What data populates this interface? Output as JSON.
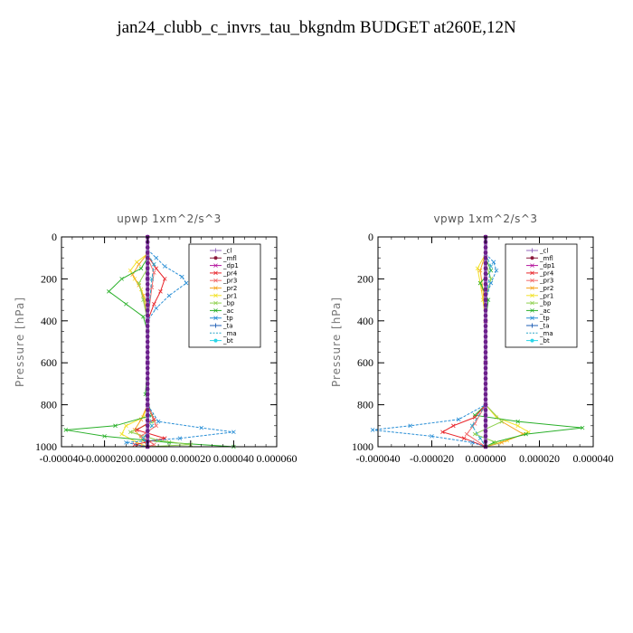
{
  "figure": {
    "title": "jan24_clubb_c_invrs_tau_bkgndm  BUDGET at260E,12N"
  },
  "legend": {
    "entries": [
      {
        "name": "_cl",
        "color": "#9467bd",
        "marker": "plus"
      },
      {
        "name": "_mfl",
        "color": "#8b1a3c",
        "marker": "dot"
      },
      {
        "name": "_dp1",
        "color": "#b5179e",
        "marker": "x"
      },
      {
        "name": "_pr4",
        "color": "#e8242a",
        "marker": "x"
      },
      {
        "name": "_pr3",
        "color": "#f26b6b",
        "marker": "x"
      },
      {
        "name": "_pr2",
        "color": "#f5a623",
        "marker": "x"
      },
      {
        "name": "_pr1",
        "color": "#f2e22a",
        "marker": "x"
      },
      {
        "name": "_bp",
        "color": "#8fd14f",
        "marker": "x"
      },
      {
        "name": "_ac",
        "color": "#2ab02a",
        "marker": "x"
      },
      {
        "name": "_tp",
        "color": "#2a8fd6",
        "marker": "x"
      },
      {
        "name": "_ta",
        "color": "#1f5fb5",
        "marker": "plus"
      },
      {
        "name": "_ma",
        "color": "#2aa6c8",
        "marker": "none"
      },
      {
        "name": "_bt",
        "color": "#2ad6e8",
        "marker": "dot"
      }
    ]
  },
  "chart_data": [
    {
      "type": "line",
      "title": "upwp   1xm^2/s^3",
      "ylabel": "Pressure [hPa]",
      "xlim": [
        -4e-05,
        6e-05
      ],
      "ylim": [
        1000,
        0
      ],
      "xticks": [
        "-0.000040",
        "-0.000020",
        "0.000000",
        "0.000020",
        "0.000040",
        "0.000060"
      ],
      "xtick_values": [
        -4e-05,
        -2e-05,
        0,
        2e-05,
        4e-05,
        6e-05
      ],
      "yticks": [
        0,
        200,
        400,
        600,
        800,
        1000
      ],
      "legend_position": "top-right",
      "series": [
        {
          "name": "_pr1",
          "points": [
            [
              0,
              80
            ],
            [
              -5e-06,
              120
            ],
            [
              -8e-06,
              160
            ],
            [
              -6e-06,
              200
            ],
            [
              -3e-06,
              250
            ],
            [
              -1e-06,
              300
            ],
            [
              0,
              400
            ],
            [
              0,
              600
            ],
            [
              0,
              800
            ],
            [
              -2e-06,
              860
            ],
            [
              -1e-05,
              900
            ],
            [
              -1.2e-05,
              940
            ],
            [
              -5e-06,
              980
            ],
            [
              0,
              1000
            ]
          ]
        },
        {
          "name": "_pr2",
          "points": [
            [
              0,
              80
            ],
            [
              -4e-06,
              130
            ],
            [
              -7e-06,
              180
            ],
            [
              -4e-06,
              230
            ],
            [
              -2e-06,
              280
            ],
            [
              0,
              400
            ],
            [
              0,
              600
            ],
            [
              0,
              800
            ],
            [
              -3e-06,
              870
            ],
            [
              -6e-06,
              920
            ],
            [
              -2e-06,
              970
            ],
            [
              0,
              1000
            ]
          ]
        },
        {
          "name": "_ac",
          "points": [
            [
              0,
              100
            ],
            [
              -3e-06,
              150
            ],
            [
              -1.2e-05,
              200
            ],
            [
              -1.8e-05,
              260
            ],
            [
              -1e-05,
              320
            ],
            [
              -2e-06,
              380
            ],
            [
              0,
              450
            ],
            [
              0,
              600
            ],
            [
              -1e-06,
              750
            ],
            [
              2e-06,
              850
            ],
            [
              -1.5e-05,
              900
            ],
            [
              -3.8e-05,
              920
            ],
            [
              -2e-05,
              950
            ],
            [
              1e-05,
              980
            ],
            [
              4e-05,
              1000
            ]
          ]
        },
        {
          "name": "_bp",
          "points": [
            [
              0,
              150
            ],
            [
              -4e-06,
              220
            ],
            [
              -2e-06,
              300
            ],
            [
              0,
              400
            ],
            [
              0,
              600
            ],
            [
              0,
              800
            ],
            [
              3e-06,
              880
            ],
            [
              -8e-06,
              930
            ],
            [
              5e-06,
              970
            ],
            [
              2e-05,
              990
            ],
            [
              0,
              1000
            ]
          ]
        },
        {
          "name": "_pr4",
          "points": [
            [
              0,
              90
            ],
            [
              4e-06,
              150
            ],
            [
              8e-06,
              200
            ],
            [
              6e-06,
              260
            ],
            [
              3e-06,
              320
            ],
            [
              0,
              400
            ],
            [
              0,
              600
            ],
            [
              0,
              800
            ],
            [
              3e-06,
              870
            ],
            [
              -5e-06,
              920
            ],
            [
              8e-06,
              960
            ],
            [
              -6e-06,
              990
            ],
            [
              0,
              1000
            ]
          ]
        },
        {
          "name": "_pr3",
          "points": [
            [
              0,
              100
            ],
            [
              3e-06,
              170
            ],
            [
              2e-06,
              240
            ],
            [
              0,
              400
            ],
            [
              0,
              600
            ],
            [
              0,
              800
            ],
            [
              4e-06,
              900
            ],
            [
              -3e-06,
              950
            ],
            [
              3e-06,
              990
            ],
            [
              0,
              1000
            ]
          ]
        },
        {
          "name": "_tp",
          "points": [
            [
              0,
              60
            ],
            [
              4e-06,
              100
            ],
            [
              8e-06,
              140
            ],
            [
              1.6e-05,
              190
            ],
            [
              1.8e-05,
              220
            ],
            [
              1e-05,
              280
            ],
            [
              4e-06,
              340
            ],
            [
              0,
              400
            ],
            [
              0,
              600
            ],
            [
              0,
              800
            ],
            [
              5e-06,
              880
            ],
            [
              2.5e-05,
              910
            ],
            [
              4e-05,
              930
            ],
            [
              1.5e-05,
              960
            ],
            [
              -1e-05,
              980
            ],
            [
              0,
              1000
            ]
          ]
        },
        {
          "name": "_ma",
          "points": [
            [
              0,
              80
            ],
            [
              3e-06,
              130
            ],
            [
              2e-06,
              200
            ],
            [
              0,
              400
            ],
            [
              0,
              600
            ],
            [
              0,
              800
            ],
            [
              2e-06,
              900
            ],
            [
              -2e-06,
              960
            ],
            [
              0,
              1000
            ]
          ]
        },
        {
          "name": "_dp1",
          "points": [
            [
              0,
              0
            ],
            [
              0,
              200
            ],
            [
              0,
              400
            ],
            [
              0,
              600
            ],
            [
              0,
              800
            ],
            [
              0,
              1000
            ]
          ]
        },
        {
          "name": "_mfl",
          "points": [
            [
              0,
              0
            ],
            [
              0,
              200
            ],
            [
              0,
              400
            ],
            [
              0,
              600
            ],
            [
              0,
              800
            ],
            [
              0,
              1000
            ]
          ]
        },
        {
          "name": "_cl",
          "points": [
            [
              0,
              0
            ],
            [
              0,
              200
            ],
            [
              0,
              400
            ],
            [
              0,
              600
            ],
            [
              0,
              800
            ],
            [
              0,
              1000
            ]
          ]
        }
      ]
    },
    {
      "type": "line",
      "title": "vpwp   1xm^2/s^3",
      "ylabel": "Pressure [hPa]",
      "xlim": [
        -4e-05,
        4e-05
      ],
      "ylim": [
        1000,
        0
      ],
      "xticks": [
        "-0.000040",
        "-0.000020",
        "0.000000",
        "0.000020",
        "0.000040"
      ],
      "xtick_values": [
        -4e-05,
        -2e-05,
        0,
        2e-05,
        4e-05
      ],
      "yticks": [
        0,
        200,
        400,
        600,
        800,
        1000
      ],
      "legend_position": "top-right",
      "series": [
        {
          "name": "_pr1",
          "points": [
            [
              0,
              80
            ],
            [
              -3e-06,
              150
            ],
            [
              -2e-06,
              220
            ],
            [
              -1e-06,
              300
            ],
            [
              0,
              400
            ],
            [
              0,
              600
            ],
            [
              0,
              800
            ],
            [
              4e-06,
              860
            ],
            [
              1.2e-05,
              900
            ],
            [
              1.6e-05,
              930
            ],
            [
              8e-06,
              970
            ],
            [
              0,
              1000
            ]
          ]
        },
        {
          "name": "_pr2",
          "points": [
            [
              0,
              80
            ],
            [
              -2e-06,
              160
            ],
            [
              -1e-06,
              250
            ],
            [
              0,
              400
            ],
            [
              0,
              600
            ],
            [
              0,
              800
            ],
            [
              6e-06,
              880
            ],
            [
              1.4e-05,
              940
            ],
            [
              6e-06,
              980
            ],
            [
              0,
              1000
            ]
          ]
        },
        {
          "name": "_ac",
          "points": [
            [
              0,
              100
            ],
            [
              2e-06,
              160
            ],
            [
              -2e-06,
              220
            ],
            [
              1e-06,
              300
            ],
            [
              0,
              400
            ],
            [
              0,
              600
            ],
            [
              0,
              800
            ],
            [
              -4e-06,
              850
            ],
            [
              1.2e-05,
              880
            ],
            [
              3.6e-05,
              910
            ],
            [
              1.5e-05,
              940
            ],
            [
              3e-06,
              980
            ],
            [
              0,
              1000
            ]
          ]
        },
        {
          "name": "_bp",
          "points": [
            [
              0,
              120
            ],
            [
              2e-06,
              200
            ],
            [
              0,
              300
            ],
            [
              0,
              600
            ],
            [
              0,
              800
            ],
            [
              6e-06,
              880
            ],
            [
              -4e-06,
              940
            ],
            [
              4e-06,
              980
            ],
            [
              0,
              1000
            ]
          ]
        },
        {
          "name": "_pr4",
          "points": [
            [
              0,
              100
            ],
            [
              0,
              200
            ],
            [
              0,
              400
            ],
            [
              0,
              600
            ],
            [
              0,
              800
            ],
            [
              -4e-06,
              860
            ],
            [
              -1.2e-05,
              900
            ],
            [
              -1.6e-05,
              930
            ],
            [
              -8e-06,
              960
            ],
            [
              0,
              1000
            ]
          ]
        },
        {
          "name": "_pr3",
          "points": [
            [
              0,
              100
            ],
            [
              0,
              400
            ],
            [
              0,
              800
            ],
            [
              -4e-06,
              890
            ],
            [
              -7e-06,
              940
            ],
            [
              0,
              1000
            ]
          ]
        },
        {
          "name": "_tp",
          "points": [
            [
              0,
              80
            ],
            [
              3e-06,
              120
            ],
            [
              4e-06,
              160
            ],
            [
              2e-06,
              220
            ],
            [
              0,
              300
            ],
            [
              0,
              600
            ],
            [
              0,
              800
            ],
            [
              -1e-05,
              870
            ],
            [
              -2.8e-05,
              900
            ],
            [
              -4.2e-05,
              920
            ],
            [
              -2e-05,
              950
            ],
            [
              -5e-06,
              980
            ],
            [
              0,
              1000
            ]
          ]
        },
        {
          "name": "_ma",
          "points": [
            [
              0,
              80
            ],
            [
              2e-06,
              140
            ],
            [
              0,
              300
            ],
            [
              0,
              800
            ],
            [
              -5e-06,
              900
            ],
            [
              -2e-06,
              960
            ],
            [
              0,
              1000
            ]
          ]
        },
        {
          "name": "_dp1",
          "points": [
            [
              0,
              0
            ],
            [
              0,
              200
            ],
            [
              0,
              400
            ],
            [
              0,
              600
            ],
            [
              0,
              800
            ],
            [
              0,
              1000
            ]
          ]
        },
        {
          "name": "_mfl",
          "points": [
            [
              0,
              0
            ],
            [
              0,
              200
            ],
            [
              0,
              400
            ],
            [
              0,
              600
            ],
            [
              0,
              800
            ],
            [
              0,
              1000
            ]
          ]
        },
        {
          "name": "_cl",
          "points": [
            [
              0,
              0
            ],
            [
              0,
              200
            ],
            [
              0,
              400
            ],
            [
              0,
              600
            ],
            [
              0,
              800
            ],
            [
              0,
              1000
            ]
          ]
        }
      ]
    }
  ]
}
